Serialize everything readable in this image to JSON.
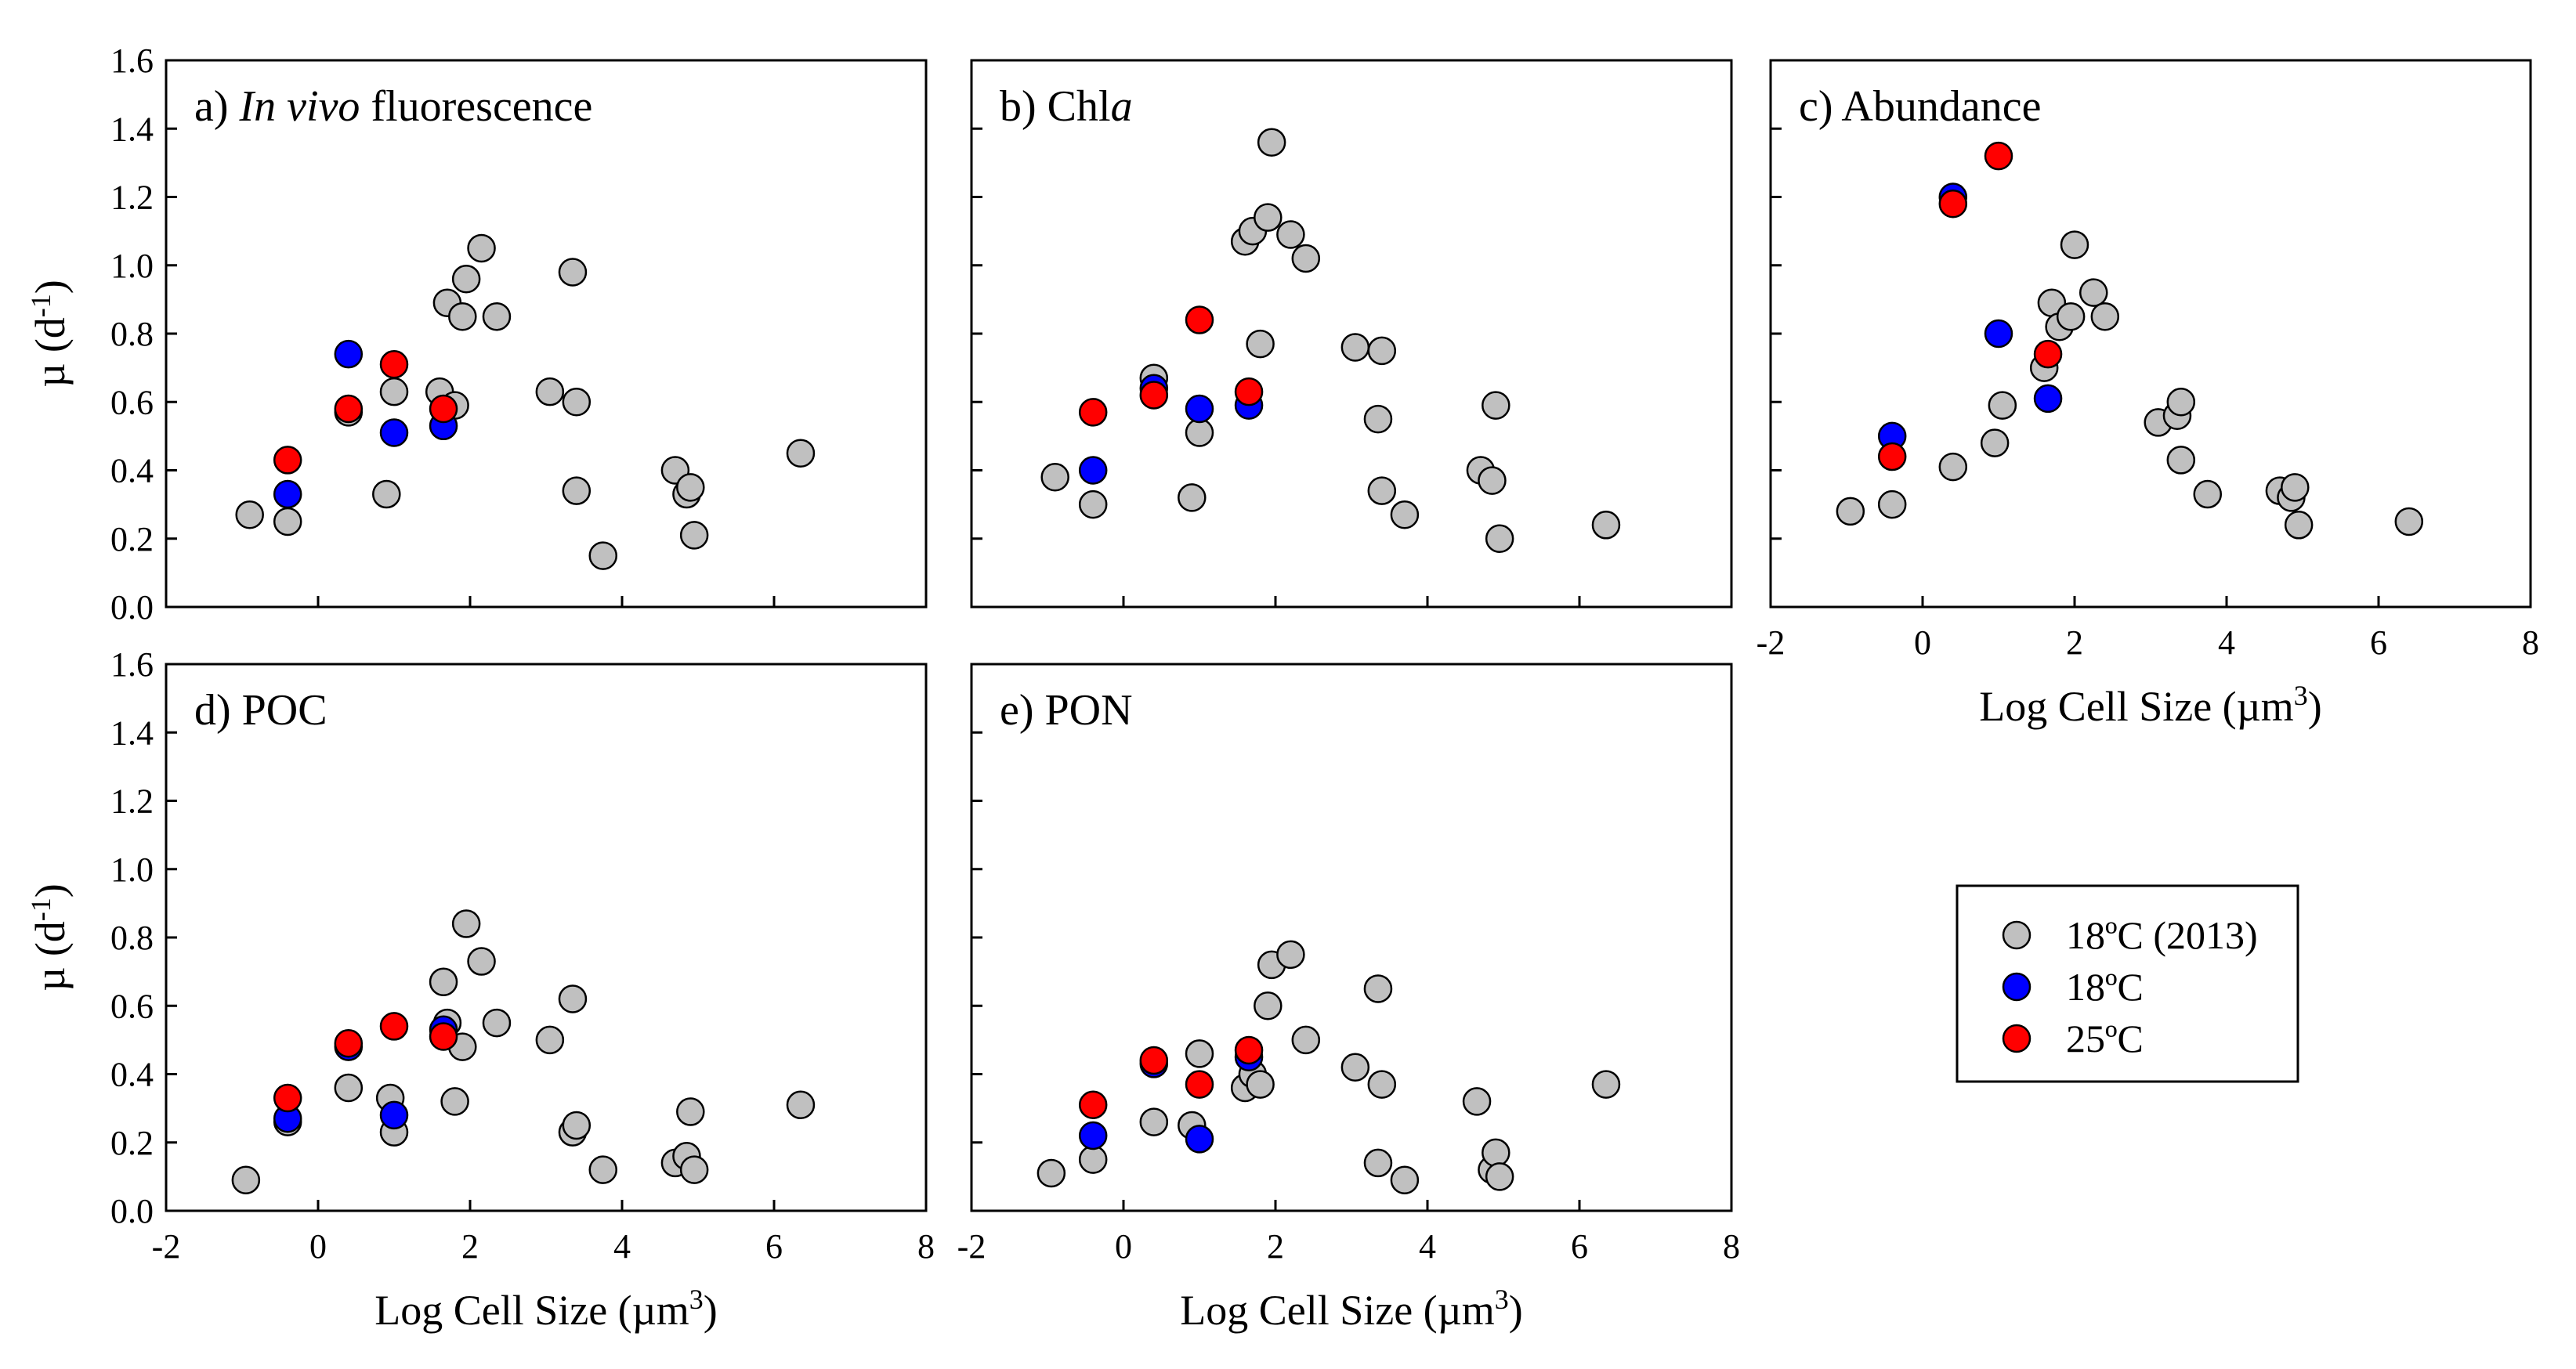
{
  "chart_data": [
    {
      "type": "scatter",
      "panel_label": "a) In vivo fluorescence",
      "label_parts": [
        {
          "text": "a) ",
          "italic": false
        },
        {
          "text": "In vivo",
          "italic": true
        },
        {
          "text": " fluorescence",
          "italic": false
        }
      ],
      "ylabel": "µ (d-1)",
      "xlabel": "",
      "xlim": [
        -2,
        8
      ],
      "ylim": [
        0,
        1.6
      ],
      "series": [
        {
          "name": "18ºC (2013)",
          "color": "#c0c0c0",
          "points": [
            [
              -0.9,
              0.27
            ],
            [
              -0.4,
              0.25
            ],
            [
              0.4,
              0.57
            ],
            [
              0.9,
              0.33
            ],
            [
              1.0,
              0.63
            ],
            [
              1.6,
              0.63
            ],
            [
              1.7,
              0.89
            ],
            [
              1.8,
              0.59
            ],
            [
              1.9,
              0.85
            ],
            [
              1.95,
              0.96
            ],
            [
              2.15,
              1.05
            ],
            [
              2.35,
              0.85
            ],
            [
              3.05,
              0.63
            ],
            [
              3.35,
              0.98
            ],
            [
              3.4,
              0.6
            ],
            [
              3.4,
              0.34
            ],
            [
              3.75,
              0.15
            ],
            [
              4.7,
              0.4
            ],
            [
              4.85,
              0.33
            ],
            [
              4.9,
              0.35
            ],
            [
              4.95,
              0.21
            ],
            [
              6.35,
              0.45
            ]
          ]
        },
        {
          "name": "18ºC",
          "color": "#0000ff",
          "points": [
            [
              -0.4,
              0.33
            ],
            [
              0.4,
              0.74
            ],
            [
              1.0,
              0.51
            ],
            [
              1.65,
              0.53
            ]
          ]
        },
        {
          "name": "25ºC",
          "color": "#ff0000",
          "points": [
            [
              -0.4,
              0.43
            ],
            [
              0.4,
              0.58
            ],
            [
              1.0,
              0.71
            ],
            [
              1.65,
              0.58
            ]
          ]
        }
      ]
    },
    {
      "type": "scatter",
      "panel_label": "b) Chla",
      "label_parts": [
        {
          "text": "b) Chl",
          "italic": false
        },
        {
          "text": "a",
          "italic": true
        }
      ],
      "ylabel": "",
      "xlabel": "",
      "xlim": [
        -2,
        8
      ],
      "ylim": [
        0,
        1.6
      ],
      "series": [
        {
          "name": "18ºC (2013)",
          "color": "#c0c0c0",
          "points": [
            [
              -0.9,
              0.38
            ],
            [
              -0.4,
              0.3
            ],
            [
              0.4,
              0.67
            ],
            [
              0.9,
              0.32
            ],
            [
              1.0,
              0.51
            ],
            [
              1.6,
              1.07
            ],
            [
              1.7,
              1.1
            ],
            [
              1.8,
              0.77
            ],
            [
              1.9,
              1.14
            ],
            [
              1.95,
              1.36
            ],
            [
              2.2,
              1.09
            ],
            [
              2.4,
              1.02
            ],
            [
              3.05,
              0.76
            ],
            [
              3.35,
              0.55
            ],
            [
              3.4,
              0.75
            ],
            [
              3.4,
              0.34
            ],
            [
              3.7,
              0.27
            ],
            [
              4.7,
              0.4
            ],
            [
              4.85,
              0.37
            ],
            [
              4.9,
              0.59
            ],
            [
              4.95,
              0.2
            ],
            [
              6.35,
              0.24
            ]
          ]
        },
        {
          "name": "18ºC",
          "color": "#0000ff",
          "points": [
            [
              -0.4,
              0.4
            ],
            [
              0.4,
              0.64
            ],
            [
              1.0,
              0.58
            ],
            [
              1.65,
              0.59
            ]
          ]
        },
        {
          "name": "25ºC",
          "color": "#ff0000",
          "points": [
            [
              -0.4,
              0.57
            ],
            [
              0.4,
              0.62
            ],
            [
              1.0,
              0.84
            ],
            [
              1.65,
              0.63
            ]
          ]
        }
      ]
    },
    {
      "type": "scatter",
      "panel_label": "c) Abundance",
      "label_parts": [
        {
          "text": "c) Abundance",
          "italic": false
        }
      ],
      "ylabel": "",
      "xlabel": "Log Cell Size (µm3)",
      "xlim": [
        -2,
        8
      ],
      "ylim": [
        0,
        1.6
      ],
      "series": [
        {
          "name": "18ºC (2013)",
          "color": "#c0c0c0",
          "points": [
            [
              -0.95,
              0.28
            ],
            [
              -0.4,
              0.3
            ],
            [
              0.4,
              0.41
            ],
            [
              0.95,
              0.48
            ],
            [
              1.05,
              0.59
            ],
            [
              1.6,
              0.7
            ],
            [
              1.7,
              0.89
            ],
            [
              1.8,
              0.82
            ],
            [
              1.95,
              0.85
            ],
            [
              2.0,
              1.06
            ],
            [
              2.25,
              0.92
            ],
            [
              2.4,
              0.85
            ],
            [
              3.1,
              0.54
            ],
            [
              3.35,
              0.56
            ],
            [
              3.4,
              0.6
            ],
            [
              3.4,
              0.43
            ],
            [
              3.75,
              0.33
            ],
            [
              4.7,
              0.34
            ],
            [
              4.85,
              0.32
            ],
            [
              4.9,
              0.35
            ],
            [
              4.95,
              0.24
            ],
            [
              6.4,
              0.25
            ]
          ]
        },
        {
          "name": "18ºC",
          "color": "#0000ff",
          "points": [
            [
              -0.4,
              0.5
            ],
            [
              0.4,
              1.2
            ],
            [
              1.0,
              0.8
            ],
            [
              1.65,
              0.61
            ]
          ]
        },
        {
          "name": "25ºC",
          "color": "#ff0000",
          "points": [
            [
              -0.4,
              0.44
            ],
            [
              0.4,
              1.18
            ],
            [
              1.0,
              1.32
            ],
            [
              1.65,
              0.74
            ]
          ]
        }
      ]
    },
    {
      "type": "scatter",
      "panel_label": "d) POC",
      "label_parts": [
        {
          "text": "d) POC",
          "italic": false
        }
      ],
      "ylabel": "µ (d-1)",
      "xlabel": "Log Cell Size (µm3)",
      "xlim": [
        -2,
        8
      ],
      "ylim": [
        0,
        1.6
      ],
      "series": [
        {
          "name": "18ºC (2013)",
          "color": "#c0c0c0",
          "points": [
            [
              -0.95,
              0.09
            ],
            [
              -0.4,
              0.26
            ],
            [
              0.4,
              0.36
            ],
            [
              0.95,
              0.33
            ],
            [
              1.0,
              0.23
            ],
            [
              1.65,
              0.67
            ],
            [
              1.7,
              0.55
            ],
            [
              1.8,
              0.32
            ],
            [
              1.9,
              0.48
            ],
            [
              1.95,
              0.84
            ],
            [
              2.15,
              0.73
            ],
            [
              2.35,
              0.55
            ],
            [
              3.05,
              0.5
            ],
            [
              3.35,
              0.62
            ],
            [
              3.35,
              0.23
            ],
            [
              3.4,
              0.25
            ],
            [
              3.75,
              0.12
            ],
            [
              4.7,
              0.14
            ],
            [
              4.85,
              0.16
            ],
            [
              4.9,
              0.29
            ],
            [
              4.95,
              0.12
            ],
            [
              6.35,
              0.31
            ]
          ]
        },
        {
          "name": "18ºC",
          "color": "#0000ff",
          "points": [
            [
              -0.4,
              0.27
            ],
            [
              0.4,
              0.48
            ],
            [
              1.0,
              0.28
            ],
            [
              1.65,
              0.53
            ]
          ]
        },
        {
          "name": "25ºC",
          "color": "#ff0000",
          "points": [
            [
              -0.4,
              0.33
            ],
            [
              0.4,
              0.49
            ],
            [
              1.0,
              0.54
            ],
            [
              1.65,
              0.51
            ]
          ]
        }
      ]
    },
    {
      "type": "scatter",
      "panel_label": "e) PON",
      "label_parts": [
        {
          "text": "e) PON",
          "italic": false
        }
      ],
      "ylabel": "",
      "xlabel": "Log Cell Size (µm3)",
      "xlim": [
        -2,
        8
      ],
      "ylim": [
        0,
        1.6
      ],
      "series": [
        {
          "name": "18ºC (2013)",
          "color": "#c0c0c0",
          "points": [
            [
              -0.95,
              0.11
            ],
            [
              -0.4,
              0.15
            ],
            [
              0.4,
              0.26
            ],
            [
              0.9,
              0.25
            ],
            [
              1.0,
              0.46
            ],
            [
              1.6,
              0.36
            ],
            [
              1.7,
              0.4
            ],
            [
              1.8,
              0.37
            ],
            [
              1.9,
              0.6
            ],
            [
              1.95,
              0.72
            ],
            [
              2.2,
              0.75
            ],
            [
              2.4,
              0.5
            ],
            [
              3.05,
              0.42
            ],
            [
              3.35,
              0.65
            ],
            [
              3.35,
              0.14
            ],
            [
              3.4,
              0.37
            ],
            [
              3.7,
              0.09
            ],
            [
              4.65,
              0.32
            ],
            [
              4.85,
              0.12
            ],
            [
              4.9,
              0.17
            ],
            [
              4.95,
              0.1
            ],
            [
              6.35,
              0.37
            ]
          ]
        },
        {
          "name": "18ºC",
          "color": "#0000ff",
          "points": [
            [
              -0.4,
              0.22
            ],
            [
              0.4,
              0.43
            ],
            [
              1.0,
              0.21
            ],
            [
              1.65,
              0.45
            ]
          ]
        },
        {
          "name": "25ºC",
          "color": "#ff0000",
          "points": [
            [
              -0.4,
              0.31
            ],
            [
              0.4,
              0.44
            ],
            [
              1.0,
              0.37
            ],
            [
              1.65,
              0.47
            ]
          ]
        }
      ]
    }
  ],
  "legend": {
    "position": "bottom-right",
    "entries": [
      {
        "label": "18ºC (2013)",
        "color": "#c0c0c0"
      },
      {
        "label": "18ºC",
        "color": "#0000ff"
      },
      {
        "label": "25ºC",
        "color": "#ff0000"
      }
    ]
  },
  "axes": {
    "x_ticks": [
      "-2",
      "0",
      "2",
      "4",
      "6",
      "8"
    ],
    "y_ticks": [
      "0.0",
      "0.2",
      "0.4",
      "0.6",
      "0.8",
      "1.0",
      "1.2",
      "1.4",
      "1.6"
    ]
  }
}
